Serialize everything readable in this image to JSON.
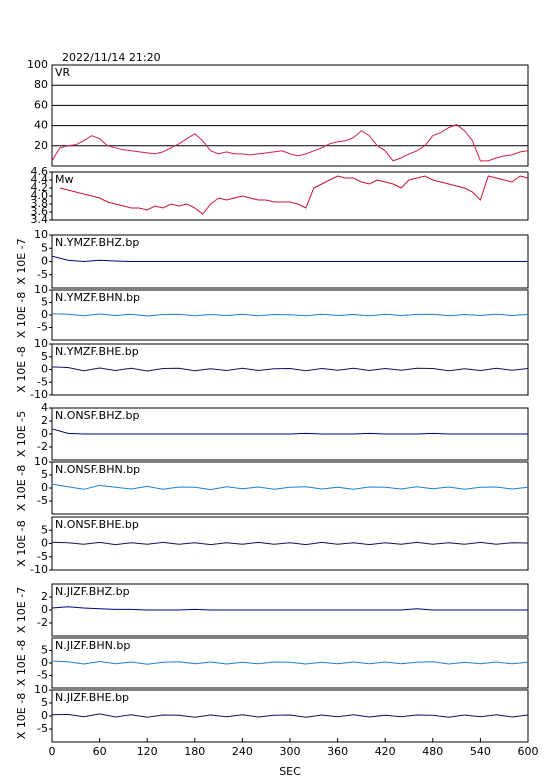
{
  "chart_data": {
    "type": "line",
    "title": "2022/11/14 21:20",
    "xlabel": "SEC",
    "xlim": [
      0,
      600
    ],
    "xticks": [
      0,
      60,
      120,
      180,
      240,
      300,
      360,
      420,
      480,
      540,
      600
    ],
    "panels": [
      {
        "label": "VR",
        "color": "#d0204a",
        "grid": true,
        "ylim": [
          0,
          100
        ],
        "yticks": [
          20,
          40,
          60,
          80,
          100
        ],
        "x": [
          0,
          10,
          20,
          30,
          40,
          50,
          60,
          70,
          80,
          90,
          100,
          110,
          120,
          130,
          140,
          150,
          160,
          170,
          180,
          190,
          200,
          210,
          220,
          230,
          240,
          250,
          260,
          270,
          280,
          290,
          300,
          310,
          320,
          330,
          340,
          350,
          360,
          370,
          380,
          390,
          400,
          410,
          420,
          430,
          440,
          450,
          460,
          470,
          480,
          490,
          500,
          510,
          520,
          530,
          540,
          550,
          560,
          570,
          580,
          590,
          600
        ],
        "values": [
          5,
          18,
          20,
          21,
          25,
          30,
          27,
          20,
          18,
          16,
          15,
          14,
          13,
          12,
          14,
          18,
          22,
          27,
          32,
          25,
          15,
          12,
          14,
          12,
          12,
          11,
          12,
          13,
          14,
          15,
          12,
          10,
          12,
          15,
          18,
          22,
          24,
          25,
          28,
          35,
          30,
          20,
          15,
          5,
          8,
          12,
          15,
          20,
          30,
          33,
          38,
          41,
          35,
          25,
          5,
          5,
          8,
          10,
          11,
          14,
          15
        ]
      },
      {
        "label": "Mw",
        "color": "#c8103a",
        "grid": false,
        "ylim": [
          3.4,
          4.6
        ],
        "yticks": [
          3.4,
          3.6,
          3.8,
          {
            "value": 4,
            "label": "4.0"
          },
          4.2,
          4.4,
          4.6
        ],
        "x": [
          0,
          10,
          20,
          30,
          40,
          50,
          60,
          70,
          80,
          90,
          100,
          110,
          120,
          130,
          140,
          150,
          160,
          170,
          180,
          190,
          200,
          210,
          220,
          230,
          240,
          250,
          260,
          270,
          280,
          290,
          300,
          310,
          320,
          330,
          340,
          350,
          360,
          370,
          380,
          390,
          400,
          410,
          420,
          430,
          440,
          450,
          460,
          470,
          480,
          490,
          500,
          510,
          520,
          530,
          540,
          550,
          560,
          570,
          580,
          590,
          600
        ],
        "values": [
          null,
          4.2,
          4.15,
          4.1,
          4.05,
          4.0,
          3.95,
          3.85,
          3.8,
          3.75,
          3.7,
          3.7,
          3.65,
          3.75,
          3.7,
          3.8,
          3.75,
          3.8,
          3.7,
          3.55,
          3.8,
          3.95,
          3.9,
          3.95,
          4.0,
          3.95,
          3.9,
          3.9,
          3.85,
          3.85,
          3.85,
          3.8,
          3.7,
          4.2,
          4.3,
          4.4,
          4.5,
          4.45,
          4.45,
          4.35,
          4.3,
          4.4,
          4.35,
          4.3,
          4.2,
          4.4,
          4.45,
          4.5,
          4.4,
          4.35,
          4.3,
          4.25,
          4.2,
          4.1,
          3.9,
          4.5,
          4.45,
          4.4,
          4.35,
          4.5,
          4.45
        ]
      },
      {
        "label": "N.YMZF.BHZ.bp",
        "unit": "X 10E -7",
        "color": "#000080",
        "grid": false,
        "ylim": [
          -10,
          10
        ],
        "yticks": [
          -5,
          0,
          5,
          10
        ],
        "x": [
          0,
          20,
          40,
          60,
          80,
          100,
          120,
          140,
          160,
          180,
          200,
          220,
          240,
          260,
          280,
          300,
          320,
          340,
          360,
          380,
          400,
          420,
          440,
          460,
          480,
          500,
          520,
          540,
          560,
          580,
          600
        ],
        "values": [
          2,
          0.5,
          0,
          0.5,
          0.2,
          0,
          0,
          0,
          0,
          0,
          0,
          0,
          0,
          0,
          0,
          0,
          0,
          0,
          0,
          0,
          0,
          0,
          0,
          0,
          0,
          0,
          0,
          0,
          0,
          0,
          0
        ]
      },
      {
        "label": "N.YMZF.BHN.bp",
        "unit": "X 10E -8",
        "color": "#1e7fd0",
        "grid": false,
        "ylim": [
          -10,
          10
        ],
        "yticks": [
          -5,
          0,
          5,
          10
        ],
        "x": [
          0,
          20,
          40,
          60,
          80,
          100,
          120,
          140,
          160,
          180,
          200,
          220,
          240,
          260,
          280,
          300,
          320,
          340,
          360,
          380,
          400,
          420,
          440,
          460,
          480,
          500,
          520,
          540,
          560,
          580,
          600
        ],
        "values": [
          0.5,
          0.3,
          -0.3,
          0.4,
          -0.2,
          0.3,
          -0.4,
          0.2,
          0.3,
          -0.3,
          0.2,
          -0.2,
          0.3,
          -0.3,
          0.2,
          0.1,
          -0.3,
          0.3,
          -0.2,
          0.2,
          -0.3,
          0.3,
          -0.2,
          0.2,
          0.3,
          -0.3,
          0.2,
          -0.2,
          0.3,
          -0.2,
          0.2
        ]
      },
      {
        "label": "N.YMZF.BHE.bp",
        "unit": "X 10E -8",
        "color": "#101060",
        "grid": false,
        "ylim": [
          -10,
          10
        ],
        "yticks": [
          -10,
          -5,
          0,
          5,
          10
        ],
        "x": [
          0,
          20,
          40,
          60,
          80,
          100,
          120,
          140,
          160,
          180,
          200,
          220,
          240,
          260,
          280,
          300,
          320,
          340,
          360,
          380,
          400,
          420,
          440,
          460,
          480,
          500,
          520,
          540,
          560,
          580,
          600
        ],
        "values": [
          1,
          0.8,
          -0.5,
          0.6,
          -0.4,
          0.5,
          -0.6,
          0.4,
          0.5,
          -0.5,
          0.3,
          -0.4,
          0.5,
          -0.4,
          0.3,
          0.4,
          -0.5,
          0.4,
          -0.3,
          0.5,
          -0.4,
          0.4,
          -0.3,
          0.5,
          0.4,
          -0.5,
          0.3,
          -0.4,
          0.5,
          -0.3,
          0.4
        ]
      },
      {
        "label": "N.ONSF.BHZ.bp",
        "unit": "X 10E -5",
        "color": "#000080",
        "grid": false,
        "ylim": [
          -4,
          4
        ],
        "yticks": [
          -2,
          0,
          2,
          4
        ],
        "x": [
          0,
          20,
          40,
          60,
          80,
          100,
          120,
          140,
          160,
          180,
          200,
          220,
          240,
          260,
          280,
          300,
          320,
          340,
          360,
          380,
          400,
          420,
          440,
          460,
          480,
          500,
          520,
          540,
          560,
          580,
          600
        ],
        "values": [
          0.8,
          0.1,
          0,
          0,
          0,
          0,
          0,
          0,
          0,
          0,
          0,
          0,
          0,
          0,
          0,
          0,
          0.1,
          0,
          0,
          0,
          0.1,
          0,
          0,
          0,
          0.1,
          0,
          0,
          0,
          0,
          0,
          0
        ]
      },
      {
        "label": "N.ONSF.BHN.bp",
        "unit": "X 10E -8",
        "color": "#1e7fd0",
        "grid": false,
        "ylim": [
          -10,
          10
        ],
        "yticks": [
          -5,
          0,
          5,
          10
        ],
        "x": [
          0,
          20,
          40,
          60,
          80,
          100,
          120,
          140,
          160,
          180,
          200,
          220,
          240,
          260,
          280,
          300,
          320,
          340,
          360,
          380,
          400,
          420,
          440,
          460,
          480,
          500,
          520,
          540,
          560,
          580,
          600
        ],
        "values": [
          1.5,
          0.5,
          -0.5,
          1,
          0.3,
          -0.4,
          0.6,
          -0.5,
          0.4,
          0.3,
          -0.6,
          0.5,
          -0.3,
          0.4,
          -0.5,
          0.3,
          0.5,
          -0.4,
          0.3,
          -0.5,
          0.4,
          0.3,
          -0.4,
          0.5,
          -0.3,
          0.4,
          -0.5,
          0.3,
          0.4,
          -0.4,
          0.3
        ]
      },
      {
        "label": "N.ONSF.BHE.bp",
        "unit": "X 10E -8",
        "color": "#101060",
        "grid": false,
        "ylim": [
          -10,
          10
        ],
        "yticks": [
          -10,
          -5,
          0,
          5
        ],
        "x": [
          0,
          20,
          40,
          60,
          80,
          100,
          120,
          140,
          160,
          180,
          200,
          220,
          240,
          260,
          280,
          300,
          320,
          340,
          360,
          380,
          400,
          420,
          440,
          460,
          480,
          500,
          520,
          540,
          560,
          580,
          600
        ],
        "values": [
          0.5,
          0.3,
          -0.3,
          0.4,
          -0.4,
          0.3,
          -0.3,
          0.4,
          -0.3,
          0.3,
          -0.4,
          0.3,
          -0.3,
          0.4,
          -0.3,
          0.3,
          -0.4,
          0.4,
          -0.3,
          0.3,
          -0.4,
          0.3,
          -0.3,
          0.4,
          -0.3,
          0.3,
          -0.3,
          0.4,
          -0.3,
          0.3,
          0.2
        ]
      },
      {
        "label": "N.JIZF.BHZ.bp",
        "unit": "X 10E -7",
        "color": "#000080",
        "grid": false,
        "ylim": [
          -4,
          4
        ],
        "yticks": [
          -2,
          0,
          2
        ],
        "x": [
          0,
          20,
          40,
          60,
          80,
          100,
          120,
          140,
          160,
          180,
          200,
          220,
          240,
          260,
          280,
          300,
          320,
          340,
          360,
          380,
          400,
          420,
          440,
          460,
          480,
          500,
          520,
          540,
          560,
          580,
          600
        ],
        "values": [
          0.3,
          0.5,
          0.3,
          0.2,
          0.1,
          0.1,
          0,
          0,
          0,
          0.1,
          0,
          0,
          0,
          0,
          0,
          0,
          0,
          0,
          0,
          0,
          0,
          0,
          0,
          0.2,
          0,
          0,
          0,
          0,
          0,
          0,
          0
        ]
      },
      {
        "label": "N.JIZF.BHN.bp",
        "unit": "X 10E -8",
        "color": "#1e7fd0",
        "grid": false,
        "ylim": [
          -10,
          10
        ],
        "yticks": [
          -5,
          0,
          5
        ],
        "x": [
          0,
          20,
          40,
          60,
          80,
          100,
          120,
          140,
          160,
          180,
          200,
          220,
          240,
          260,
          280,
          300,
          320,
          340,
          360,
          380,
          400,
          420,
          440,
          460,
          480,
          500,
          520,
          540,
          560,
          580,
          600
        ],
        "values": [
          0.8,
          0.5,
          -0.4,
          0.6,
          -0.3,
          0.4,
          -0.5,
          0.3,
          0.5,
          -0.3,
          0.4,
          -0.4,
          0.3,
          -0.3,
          0.4,
          0.3,
          -0.4,
          0.3,
          -0.3,
          0.4,
          -0.3,
          0.4,
          -0.3,
          0.3,
          0.5,
          -0.4,
          0.3,
          -0.3,
          0.4,
          -0.3,
          0.3
        ]
      },
      {
        "label": "N.JIZF.BHE.bp",
        "unit": "X 10E -8",
        "color": "#101060",
        "grid": false,
        "ylim": [
          -10,
          10
        ],
        "yticks": [
          -5,
          0,
          5,
          10
        ],
        "x": [
          0,
          20,
          40,
          60,
          80,
          100,
          120,
          140,
          160,
          180,
          200,
          220,
          240,
          260,
          280,
          300,
          320,
          340,
          360,
          380,
          400,
          420,
          440,
          460,
          480,
          500,
          520,
          540,
          560,
          580,
          600
        ],
        "values": [
          0.5,
          0.6,
          -0.3,
          0.8,
          -0.4,
          0.5,
          -0.5,
          0.4,
          0.3,
          -0.5,
          0.4,
          -0.3,
          0.5,
          -0.4,
          0.3,
          0.4,
          -0.5,
          0.4,
          -0.3,
          0.5,
          -0.4,
          0.3,
          -0.3,
          0.4,
          0.3,
          -0.5,
          0.4,
          -0.3,
          0.5,
          -0.4,
          0.4
        ]
      }
    ]
  }
}
